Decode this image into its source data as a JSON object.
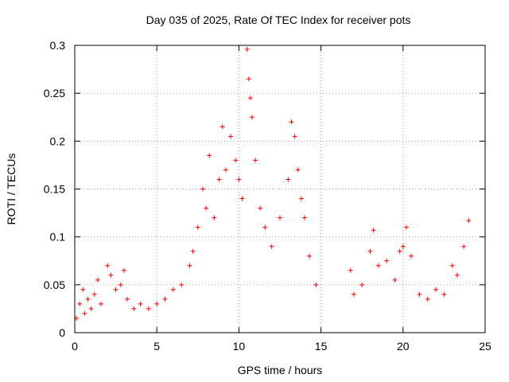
{
  "chart_data": {
    "type": "scatter",
    "title": "Day 035 of 2025, Rate Of TEC Index for receiver pots",
    "xlabel": "GPS time / hours",
    "ylabel": "ROTI / TECUs",
    "xlim": [
      0,
      25
    ],
    "ylim": [
      0,
      0.3
    ],
    "xticks": [
      "0",
      "5",
      "10",
      "15",
      "20",
      "25"
    ],
    "yticks": [
      "0",
      "0.05",
      "0.1",
      "0.15",
      "0.2",
      "0.25",
      "0.3"
    ],
    "grid": true,
    "marker": "+",
    "color": "#ff0000",
    "data_gap_hours": [
      14.9,
      16.7
    ],
    "series": [
      {
        "points": [
          [
            0.1,
            0.015
          ],
          [
            0.3,
            0.03
          ],
          [
            0.5,
            0.045
          ],
          [
            0.6,
            0.02
          ],
          [
            0.8,
            0.035
          ],
          [
            1.0,
            0.025
          ],
          [
            1.2,
            0.04
          ],
          [
            1.4,
            0.055
          ],
          [
            1.6,
            0.03
          ],
          [
            2.0,
            0.07
          ],
          [
            2.2,
            0.06
          ],
          [
            2.5,
            0.045
          ],
          [
            2.8,
            0.05
          ],
          [
            3.0,
            0.065
          ],
          [
            3.2,
            0.035
          ],
          [
            3.6,
            0.025
          ],
          [
            4.0,
            0.03
          ],
          [
            4.5,
            0.025
          ],
          [
            5.0,
            0.03
          ],
          [
            5.5,
            0.035
          ],
          [
            6.0,
            0.045
          ],
          [
            6.5,
            0.05
          ],
          [
            7.0,
            0.07
          ],
          [
            7.2,
            0.085
          ],
          [
            7.5,
            0.11
          ],
          [
            7.8,
            0.15
          ],
          [
            8.0,
            0.13
          ],
          [
            8.2,
            0.185
          ],
          [
            8.5,
            0.12
          ],
          [
            8.8,
            0.16
          ],
          [
            9.0,
            0.215
          ],
          [
            9.2,
            0.17
          ],
          [
            9.5,
            0.205
          ],
          [
            9.8,
            0.18
          ],
          [
            10.0,
            0.16
          ],
          [
            10.2,
            0.14
          ],
          [
            10.5,
            0.296
          ],
          [
            10.6,
            0.265
          ],
          [
            10.7,
            0.245
          ],
          [
            10.8,
            0.225
          ],
          [
            11.0,
            0.18
          ],
          [
            11.3,
            0.13
          ],
          [
            11.6,
            0.11
          ],
          [
            12.0,
            0.09
          ],
          [
            12.5,
            0.12
          ],
          [
            13.0,
            0.16
          ],
          [
            13.2,
            0.22
          ],
          [
            13.4,
            0.205
          ],
          [
            13.6,
            0.17
          ],
          [
            13.8,
            0.14
          ],
          [
            14.0,
            0.12
          ],
          [
            14.3,
            0.08
          ],
          [
            14.7,
            0.05
          ],
          [
            16.8,
            0.065
          ],
          [
            17.0,
            0.04
          ],
          [
            17.5,
            0.05
          ],
          [
            18.0,
            0.085
          ],
          [
            18.2,
            0.107
          ],
          [
            18.5,
            0.07
          ],
          [
            19.0,
            0.075
          ],
          [
            19.5,
            0.055
          ],
          [
            19.8,
            0.085
          ],
          [
            20.0,
            0.09
          ],
          [
            20.2,
            0.11
          ],
          [
            20.5,
            0.08
          ],
          [
            21.0,
            0.04
          ],
          [
            21.5,
            0.035
          ],
          [
            22.0,
            0.045
          ],
          [
            22.5,
            0.04
          ],
          [
            23.0,
            0.07
          ],
          [
            23.3,
            0.06
          ],
          [
            23.7,
            0.09
          ],
          [
            24.0,
            0.117
          ]
        ]
      }
    ]
  }
}
